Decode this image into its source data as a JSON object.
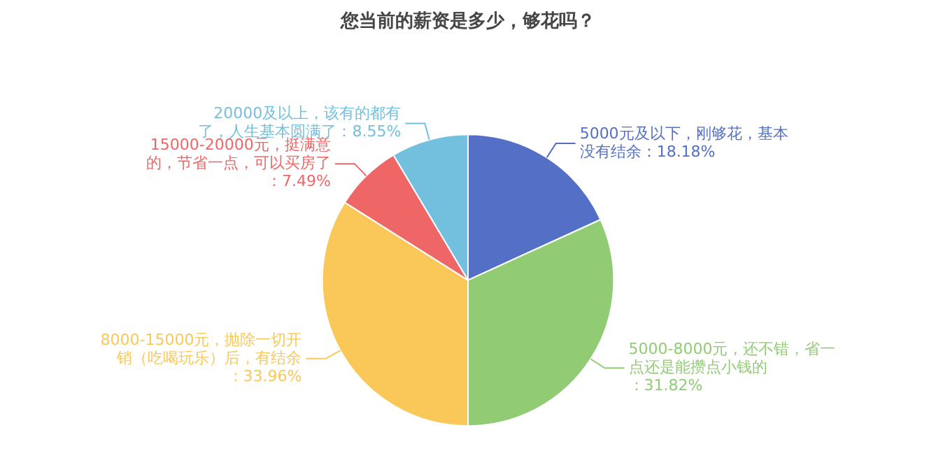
{
  "chart_data": {
    "type": "pie",
    "title": "您当前的薪资是多少，够花吗？",
    "categories": [
      "5000元及以下，刚够花，基本没有结余：18.18%",
      "5000-8000元，还不错，省一点还是能攒点小钱的：31.82%",
      "8000-15000元，抛除一切开销（吃喝玩乐）后，有结余：33.96%",
      "15000-20000元，挺满意的，节省一点，可以买房了：7.49%",
      "20000及以上，该有的都有了，人生基本圆满了：8.55%"
    ],
    "values": [
      18.18,
      31.82,
      33.96,
      7.49,
      8.55
    ],
    "colors": [
      "#5470c6",
      "#91cc75",
      "#fac858",
      "#ee6666",
      "#73c0de"
    ],
    "legend": false
  }
}
